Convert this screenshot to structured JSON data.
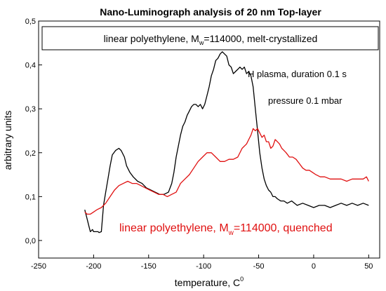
{
  "chart_data": {
    "type": "line",
    "title": "Nano-Luminograph analysis of 20 nm Top-layer",
    "xlabel": "temperature, C",
    "xlabel_sup": "0",
    "ylabel": "arbitrary units",
    "xlim": [
      -250,
      60
    ],
    "ylim": [
      -0.04,
      0.5
    ],
    "xticks": [
      -250,
      -200,
      -150,
      -100,
      -50,
      0,
      50
    ],
    "yticks": [
      0.0,
      0.1,
      0.2,
      0.3,
      0.4,
      0.5
    ],
    "xtick_labels": [
      "-250",
      "-200",
      "-150",
      "-100",
      "-50",
      "0",
      "50"
    ],
    "ytick_labels": [
      "0,0",
      "0,1",
      "0,2",
      "0,3",
      "0,4",
      "0,5"
    ],
    "grid": false,
    "box_label": {
      "pre": "linear polyethylene, M",
      "sub": "w",
      "post": "=114000, melt-crystallized"
    },
    "annotations": {
      "black_line1": "H plasma, duration 0.1 s",
      "black_line2": "pressure 0.1 mbar",
      "red_pre": "linear polyethylene, M",
      "red_sub": "w",
      "red_post": "=114000, quenched"
    },
    "series": [
      {
        "color": "#000000",
        "x": [
          -208,
          -206,
          -204,
          -203,
          -201,
          -200,
          -198,
          -196,
          -195,
          -193,
          -191,
          -189,
          -187,
          -185,
          -183,
          -180,
          -177,
          -175,
          -172,
          -170,
          -167,
          -164,
          -160,
          -156,
          -152,
          -148,
          -144,
          -140,
          -136,
          -132,
          -129,
          -127,
          -125,
          -123,
          -121,
          -119,
          -117,
          -115,
          -113,
          -111,
          -109,
          -107,
          -105,
          -103,
          -101,
          -99,
          -97,
          -95,
          -93,
          -91,
          -89,
          -87,
          -85,
          -83,
          -81,
          -79,
          -77,
          -75,
          -73,
          -71,
          -69,
          -67,
          -65,
          -63,
          -61,
          -59,
          -57,
          -55,
          -53,
          -51,
          -49,
          -47,
          -45,
          -43,
          -41,
          -39,
          -37,
          -35,
          -33,
          -30,
          -27,
          -24,
          -20,
          -15,
          -10,
          -5,
          0,
          5,
          10,
          15,
          20,
          25,
          30,
          35,
          40,
          45,
          50
        ],
        "y": [
          0.07,
          0.05,
          0.03,
          0.02,
          0.025,
          0.02,
          0.02,
          0.02,
          0.018,
          0.02,
          0.08,
          0.11,
          0.14,
          0.17,
          0.195,
          0.205,
          0.21,
          0.205,
          0.19,
          0.17,
          0.155,
          0.145,
          0.135,
          0.13,
          0.12,
          0.115,
          0.11,
          0.105,
          0.105,
          0.11,
          0.13,
          0.155,
          0.19,
          0.215,
          0.24,
          0.26,
          0.27,
          0.285,
          0.295,
          0.305,
          0.31,
          0.31,
          0.305,
          0.31,
          0.3,
          0.31,
          0.33,
          0.35,
          0.375,
          0.39,
          0.41,
          0.415,
          0.425,
          0.43,
          0.425,
          0.42,
          0.4,
          0.395,
          0.38,
          0.385,
          0.39,
          0.395,
          0.39,
          0.395,
          0.38,
          0.385,
          0.375,
          0.35,
          0.3,
          0.25,
          0.2,
          0.165,
          0.14,
          0.125,
          0.115,
          0.11,
          0.1,
          0.1,
          0.095,
          0.09,
          0.09,
          0.085,
          0.09,
          0.08,
          0.085,
          0.08,
          0.075,
          0.08,
          0.08,
          0.075,
          0.08,
          0.085,
          0.08,
          0.085,
          0.08,
          0.085,
          0.08
        ]
      },
      {
        "color": "#e01010",
        "x": [
          -208,
          -206,
          -203,
          -200,
          -197,
          -193,
          -189,
          -185,
          -181,
          -177,
          -173,
          -169,
          -165,
          -161,
          -157,
          -153,
          -149,
          -145,
          -141,
          -137,
          -133,
          -129,
          -125,
          -121,
          -117,
          -113,
          -109,
          -105,
          -101,
          -97,
          -93,
          -89,
          -85,
          -81,
          -77,
          -73,
          -69,
          -65,
          -61,
          -59,
          -57,
          -55,
          -53,
          -51,
          -49,
          -47,
          -45,
          -43,
          -41,
          -39,
          -37,
          -35,
          -33,
          -31,
          -29,
          -27,
          -25,
          -22,
          -19,
          -16,
          -13,
          -10,
          -7,
          -4,
          -1,
          2,
          6,
          10,
          15,
          20,
          25,
          30,
          35,
          40,
          45,
          48,
          50
        ],
        "y": [
          0.065,
          0.06,
          0.06,
          0.065,
          0.07,
          0.075,
          0.085,
          0.1,
          0.115,
          0.125,
          0.13,
          0.135,
          0.13,
          0.13,
          0.125,
          0.12,
          0.115,
          0.11,
          0.105,
          0.105,
          0.1,
          0.105,
          0.11,
          0.13,
          0.14,
          0.15,
          0.165,
          0.18,
          0.19,
          0.2,
          0.2,
          0.19,
          0.18,
          0.18,
          0.185,
          0.185,
          0.19,
          0.21,
          0.22,
          0.23,
          0.24,
          0.255,
          0.25,
          0.255,
          0.245,
          0.235,
          0.24,
          0.225,
          0.225,
          0.21,
          0.215,
          0.23,
          0.225,
          0.22,
          0.21,
          0.205,
          0.2,
          0.19,
          0.19,
          0.185,
          0.175,
          0.165,
          0.16,
          0.16,
          0.155,
          0.15,
          0.145,
          0.145,
          0.14,
          0.14,
          0.14,
          0.135,
          0.14,
          0.14,
          0.14,
          0.145,
          0.135
        ]
      }
    ]
  }
}
